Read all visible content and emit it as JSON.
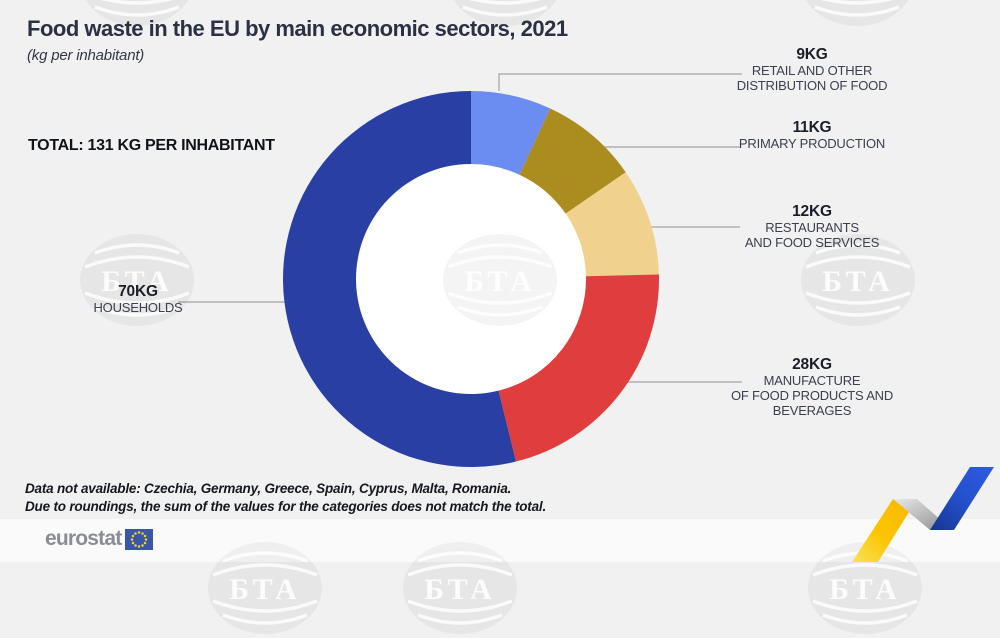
{
  "title": "Food waste in the EU by main economic sectors, 2021",
  "subtitle": "(kg per inhabitant)",
  "total_label": "TOTAL: 131 KG PER INHABITANT",
  "chart_data": {
    "type": "pie",
    "variant": "donut",
    "title": "Food waste in the EU by main economic sectors, 2021",
    "unit": "kg per inhabitant",
    "total_kg_per_inhabitant": 131,
    "start_angle_deg": 0,
    "direction": "clockwise",
    "segments": [
      {
        "label": "Retail and other distribution of food",
        "value_kg": 9,
        "value_label": "9KG",
        "name_lines": [
          "RETAIL AND OTHER",
          "DISTRIBUTION OF FOOD"
        ],
        "color": "#6b8cf0"
      },
      {
        "label": "Primary production",
        "value_kg": 11,
        "value_label": "11KG",
        "name_lines": [
          "PRIMARY PRODUCTION"
        ],
        "color": "#aa8d1e"
      },
      {
        "label": "Restaurants and food services",
        "value_kg": 12,
        "value_label": "12KG",
        "name_lines": [
          "RESTAURANTS",
          "AND FOOD SERVICES"
        ],
        "color": "#f0d28e"
      },
      {
        "label": "Manufacture of food products and beverages",
        "value_kg": 28,
        "value_label": "28KG",
        "name_lines": [
          "MANUFACTURE",
          "OF FOOD PRODUCTS AND BEVERAGES"
        ],
        "color": "#e03e3e"
      },
      {
        "label": "Households",
        "value_kg": 70,
        "value_label": "70KG",
        "name_lines": [
          "HOUSEHOLDS"
        ],
        "color": "#2a3fa4"
      }
    ]
  },
  "footnotes": {
    "line1": "Data not available:  Czechia, Germany, Greece, Spain, Cyprus, Malta, Romania.",
    "line2": "Due to roundings, the sum of the values for the categories does not match the total."
  },
  "footer": {
    "brand": "eurostat"
  },
  "watermark": {
    "text": "БТА"
  },
  "colors": {
    "background": "#f1f1f2",
    "footer_strip": "#fafafa",
    "title_text": "#2b3144",
    "connector_line": "#a3a3a3",
    "arrow_yellow": "#fcc400",
    "arrow_blue": "#2450cc",
    "eu_flag_blue": "#3a57a7",
    "eu_flag_stars": "#f8d21a"
  }
}
